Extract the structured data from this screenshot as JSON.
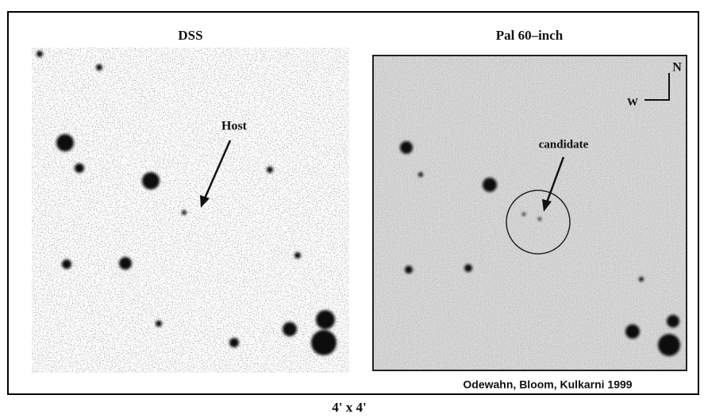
{
  "panels": [
    {
      "title": "DSS",
      "annotation": "Host"
    },
    {
      "title": "Pal 60–inch",
      "annotation": "candidate",
      "compass": {
        "north": "N",
        "west": "W"
      },
      "credit": "Odewahn, Bloom, Kulkarni 1999"
    }
  ],
  "scale": "4' x 4'"
}
